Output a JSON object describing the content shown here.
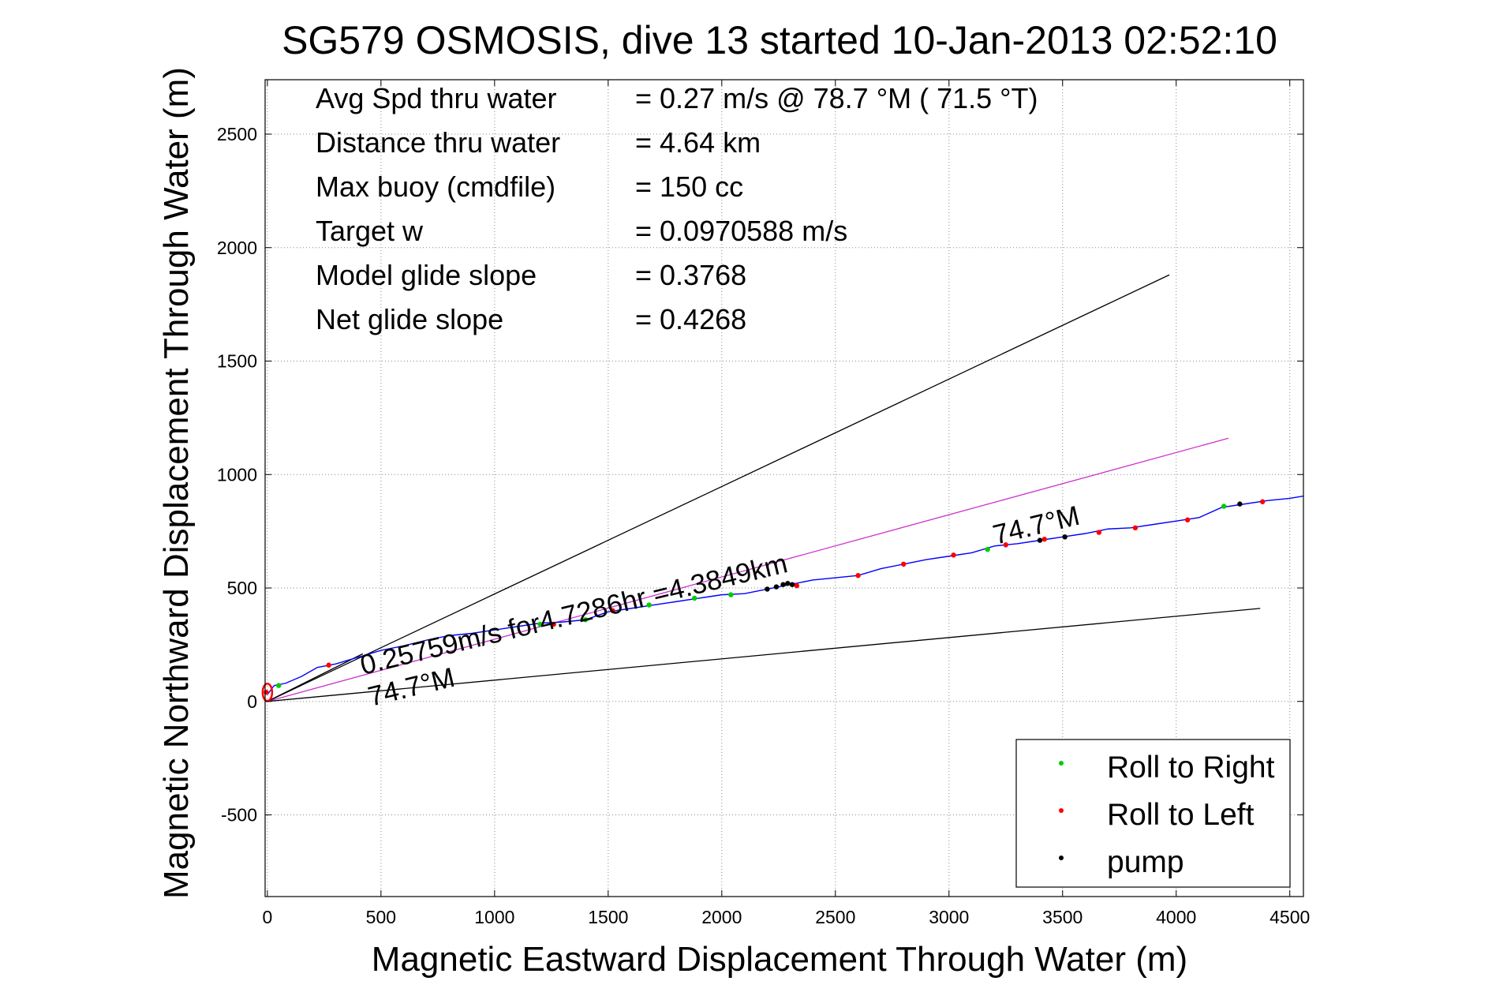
{
  "chart_data": {
    "type": "line",
    "title": "SG579 OSMOSIS, dive 13 started 10-Jan-2013 02:52:10",
    "xlabel": "Magnetic Eastward Displacement Through Water (m)",
    "ylabel": "Magnetic Northward Displacement Through Water (m)",
    "xlim": [
      -10,
      4560
    ],
    "ylim": [
      -860,
      2740
    ],
    "xticks": [
      0,
      500,
      1000,
      1500,
      2000,
      2500,
      3000,
      3500,
      4000,
      4500
    ],
    "yticks": [
      -500,
      0,
      500,
      1000,
      1500,
      2000,
      2500
    ],
    "grid": true,
    "annotations": [
      {
        "label": "Avg Spd thru water",
        "value": "=  0.27 m/s @  78.7 °M ( 71.5 °T)"
      },
      {
        "label": "Distance thru water",
        "value": "=  4.64 km"
      },
      {
        "label": "Max buoy (cmdfile)",
        "value": "= 150 cc"
      },
      {
        "label": "Target w",
        "value": "= 0.0970588 m/s"
      },
      {
        "label": "Model glide slope",
        "value": "= 0.3768"
      },
      {
        "label": "Net glide slope",
        "value": "= 0.4268"
      }
    ],
    "line_labels": {
      "vector": "0.25759m/s for4.7286hr =4.3849km",
      "heading_low": "74.7°M",
      "heading_track": "74.7°M"
    },
    "reference_lines": [
      {
        "color": "#000000",
        "x": [
          0,
          3970
        ],
        "y": [
          0,
          1880
        ]
      },
      {
        "color": "#cc33cc",
        "x": [
          0,
          4230
        ],
        "y": [
          0,
          1160
        ]
      },
      {
        "color": "#000000",
        "x": [
          0,
          4370
        ],
        "y": [
          0,
          410
        ]
      },
      {
        "color": "#000000",
        "x": [
          0,
          420
        ],
        "y": [
          0,
          210
        ]
      }
    ],
    "series": [
      {
        "color": "#0000ff",
        "x": [
          0,
          30,
          80,
          150,
          220,
          300,
          400,
          500,
          600,
          700,
          800,
          900,
          1000,
          1100,
          1200,
          1300,
          1400,
          1500,
          1600,
          1700,
          1800,
          1900,
          2000,
          2100,
          2200,
          2300,
          2400,
          2500,
          2600,
          2700,
          2800,
          2900,
          3000,
          3100,
          3200,
          3300,
          3400,
          3500,
          3600,
          3700,
          3800,
          3900,
          4000,
          4100,
          4200,
          4300,
          4400,
          4500,
          4560
        ],
        "y": [
          30,
          70,
          80,
          110,
          150,
          165,
          195,
          225,
          245,
          270,
          290,
          300,
          315,
          330,
          345,
          350,
          360,
          395,
          410,
          425,
          440,
          455,
          470,
          475,
          495,
          515,
          535,
          545,
          555,
          585,
          605,
          625,
          640,
          655,
          685,
          695,
          710,
          725,
          740,
          760,
          765,
          780,
          795,
          810,
          855,
          870,
          885,
          895,
          905
        ]
      }
    ],
    "markers": {
      "roll_right": {
        "color": "#00cc00",
        "x": [
          50,
          1200,
          1400,
          1680,
          1880,
          2040,
          3170,
          4210
        ],
        "y": [
          70,
          340,
          360,
          425,
          455,
          470,
          670,
          860
        ]
      },
      "roll_left": {
        "color": "#ff0000",
        "x": [
          -5,
          270,
          1520,
          1260,
          2330,
          2600,
          2800,
          3020,
          3250,
          3420,
          3660,
          3820,
          4050,
          4380
        ],
        "y": [
          40,
          160,
          400,
          340,
          510,
          555,
          605,
          645,
          690,
          715,
          745,
          765,
          800,
          880
        ],
        "circle": {
          "x": 0,
          "y": 40
        }
      },
      "pump": {
        "color": "#000000",
        "x": [
          2200,
          2240,
          2270,
          2290,
          2310,
          3400,
          3510,
          4280
        ],
        "y": [
          495,
          505,
          515,
          520,
          515,
          710,
          725,
          870
        ]
      }
    },
    "legend": {
      "placement": "bottom-right",
      "entries": [
        {
          "label": "Roll to Right",
          "color": "#00cc00"
        },
        {
          "label": "Roll to Left",
          "color": "#ff0000"
        },
        {
          "label": "pump",
          "color": "#000000"
        }
      ]
    }
  }
}
